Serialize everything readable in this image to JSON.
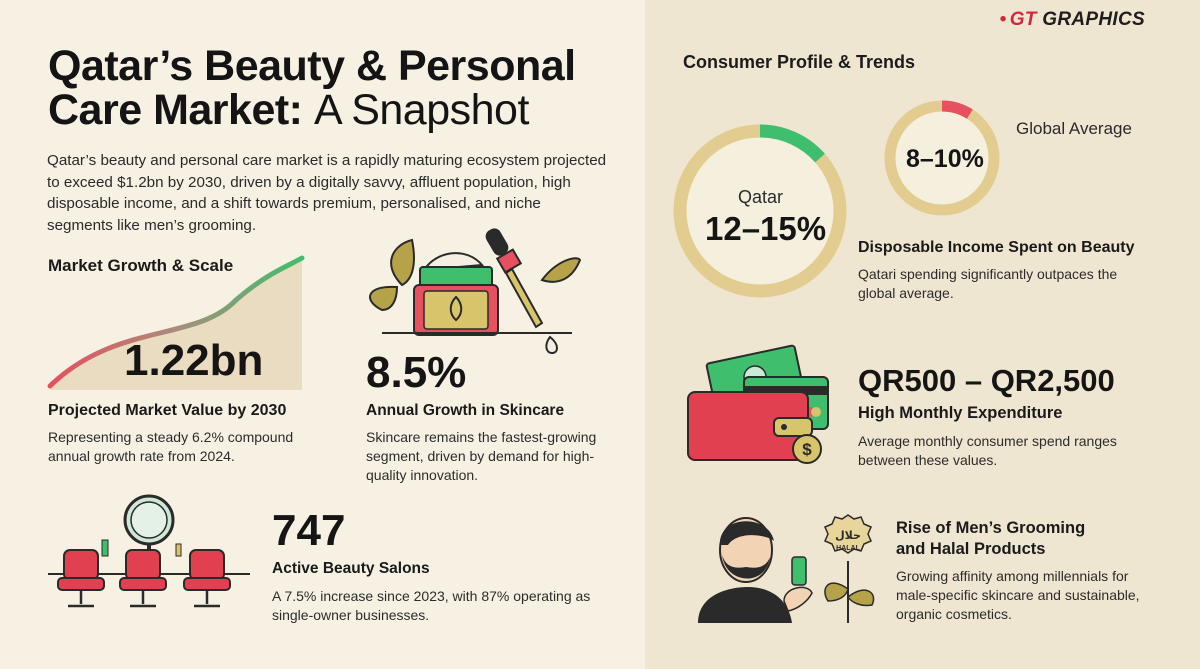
{
  "brand": {
    "dot": "•",
    "gt": "GT",
    "name": "GRAPHICS"
  },
  "header": {
    "title_line1": "Qatar’s Beauty & Personal",
    "title_line2_bold": "Care Market:",
    "title_line2_light": "A Snapshot",
    "intro": "Qatar’s beauty and personal care market is a rapidly maturing ecosystem projected to exceed $1.2bn by 2030, driven by a digitally savvy, affluent population, high disposable income, and a shift towards premium, personalised, and niche segments like men’s grooming."
  },
  "market_growth": {
    "section_title": "Market Growth & Scale",
    "value": "1.22bn",
    "heading": "Projected Market Value by 2030",
    "description": "Representing a steady 6.2% compound annual growth rate from 2024."
  },
  "skincare": {
    "value": "8.5%",
    "heading": "Annual Growth in Skincare",
    "description": "Skincare remains the fastest-growing segment, driven by demand for high-quality innovation."
  },
  "salons": {
    "value": "747",
    "heading": "Active Beauty Salons",
    "description": "A 7.5% increase since 2023, with 87% operating as single-owner businesses."
  },
  "consumer": {
    "section_title": "Consumer Profile & Trends",
    "qatar_label": "Qatar",
    "qatar_value": "12–15%",
    "global_label": "Global Average",
    "global_value": "8–10%",
    "qatar_share": 0.135,
    "global_share": 0.09,
    "income_heading": "Disposable Income Spent on Beauty",
    "income_description": "Qatari spending significantly outpaces the global average.",
    "spend_value": "QR500 – QR2,500",
    "spend_heading": "High Monthly Expenditure",
    "spend_description": "Average monthly consumer spend ranges between these values.",
    "grooming_heading_1": "Rise of Men’s Grooming",
    "grooming_heading_2": "and Halal Products",
    "grooming_description": "Growing affinity among millennials for male-specific skincare and sustainable, organic cosmetics.",
    "halal_badge": "HALAL",
    "halal_arabic": "حلال"
  },
  "colors": {
    "accent_green": "#3fbf6d",
    "accent_red": "#e6505f",
    "ring_gold": "#e3cc8f",
    "chair_red": "#e0404f",
    "olive": "#b6a349"
  },
  "icons": [
    "growth-curve-icon",
    "skincare-jar-icon",
    "dropper-icon",
    "leaf-icon",
    "salon-chairs-icon",
    "mirror-icon",
    "wallet-icon",
    "credit-card-icon",
    "banknote-icon",
    "coin-icon",
    "bearded-man-icon",
    "halal-plant-icon"
  ]
}
